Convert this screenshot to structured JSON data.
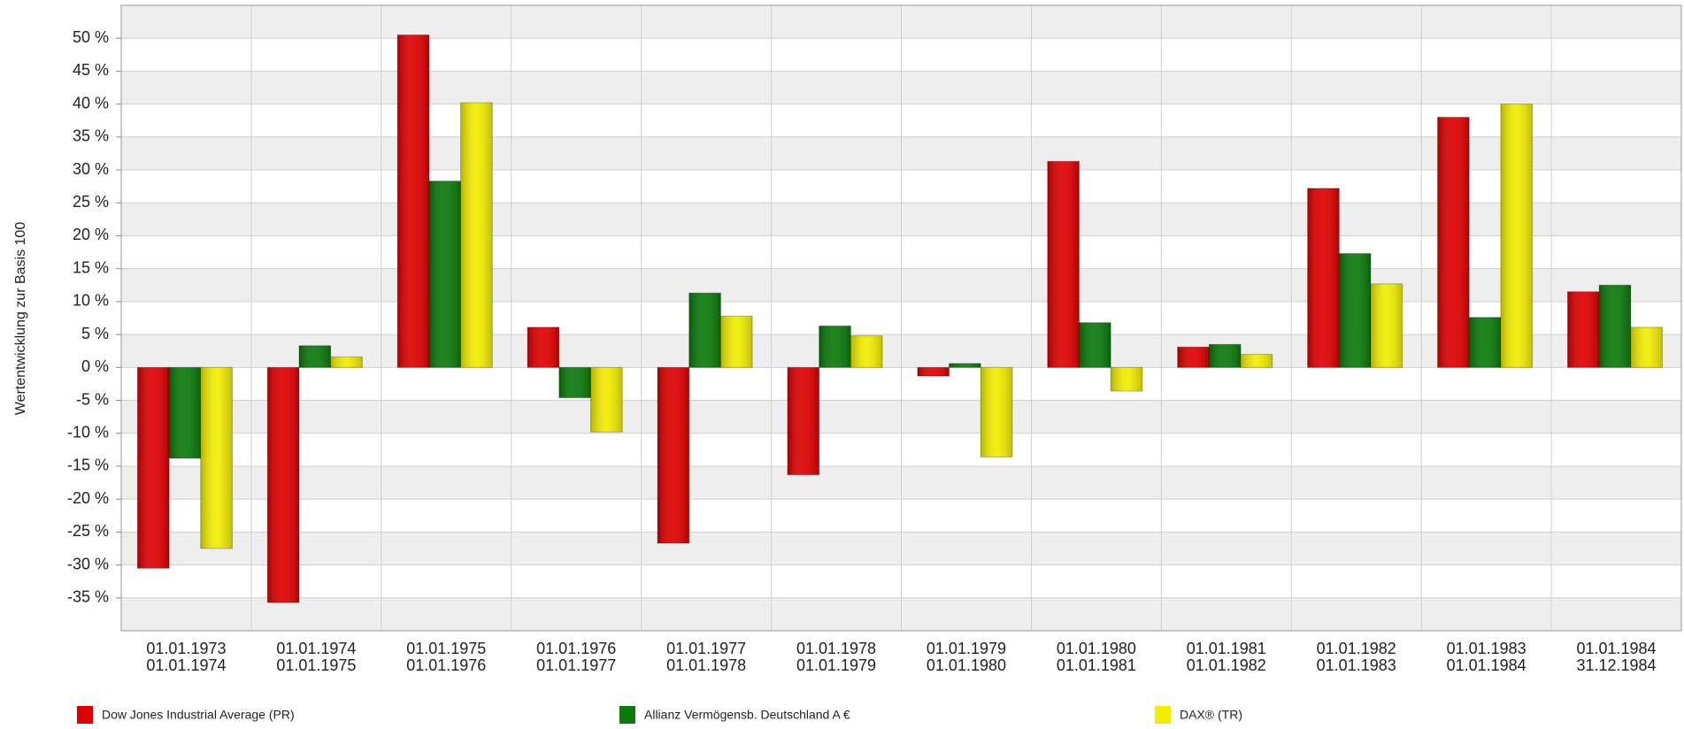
{
  "chart_data": {
    "type": "bar",
    "y_label": "Wertentwicklung zur Basis 100",
    "categories": [
      [
        "01.01.1973",
        "01.01.1974"
      ],
      [
        "01.01.1974",
        "01.01.1975"
      ],
      [
        "01.01.1975",
        "01.01.1976"
      ],
      [
        "01.01.1976",
        "01.01.1977"
      ],
      [
        "01.01.1977",
        "01.01.1978"
      ],
      [
        "01.01.1978",
        "01.01.1979"
      ],
      [
        "01.01.1979",
        "01.01.1980"
      ],
      [
        "01.01.1980",
        "01.01.1981"
      ],
      [
        "01.01.1981",
        "01.01.1982"
      ],
      [
        "01.01.1982",
        "01.01.1983"
      ],
      [
        "01.01.1983",
        "01.01.1984"
      ],
      [
        "01.01.1984",
        "31.12.1984"
      ]
    ],
    "series": [
      {
        "name": "Dow Jones Industrial Average (PR)",
        "color": "#e00000",
        "values": [
          -30.5,
          -35.7,
          50.5,
          6.1,
          -26.7,
          -16.3,
          -1.3,
          31.3,
          3.1,
          27.2,
          38.0,
          11.5
        ]
      },
      {
        "name": "Allianz Vermögensb. Deutschland A €",
        "color": "#0a7a0a",
        "values": [
          -13.8,
          3.3,
          28.3,
          -4.6,
          11.3,
          6.3,
          0.6,
          6.8,
          3.5,
          17.3,
          7.6,
          12.5
        ]
      },
      {
        "name": "DAX® (TR)",
        "color": "#f2ee00",
        "values": [
          -27.5,
          1.6,
          40.2,
          -9.8,
          7.8,
          4.8,
          -13.6,
          -3.6,
          2.0,
          12.7,
          40.0,
          6.1
        ]
      }
    ],
    "ylim": [
      -40,
      55
    ],
    "yticks": [
      {
        "value": -35,
        "label": "-35 %"
      },
      {
        "value": -30,
        "label": "-30 %"
      },
      {
        "value": -25,
        "label": "-25 %"
      },
      {
        "value": -20,
        "label": "-20 %"
      },
      {
        "value": -15,
        "label": "-15 %"
      },
      {
        "value": -10,
        "label": "-10 %"
      },
      {
        "value": -5,
        "label": "-5 %"
      },
      {
        "value": 0,
        "label": "0 %"
      },
      {
        "value": 5,
        "label": "5 %"
      },
      {
        "value": 10,
        "label": "10 %"
      },
      {
        "value": 15,
        "label": "15 %"
      },
      {
        "value": 20,
        "label": "20 %"
      },
      {
        "value": 25,
        "label": "25 %"
      },
      {
        "value": 30,
        "label": "30 %"
      },
      {
        "value": 35,
        "label": "35 %"
      },
      {
        "value": 40,
        "label": "40 %"
      },
      {
        "value": 45,
        "label": "45 %"
      },
      {
        "value": 50,
        "label": "50 %"
      }
    ],
    "grid": true,
    "legend": "bottom"
  }
}
